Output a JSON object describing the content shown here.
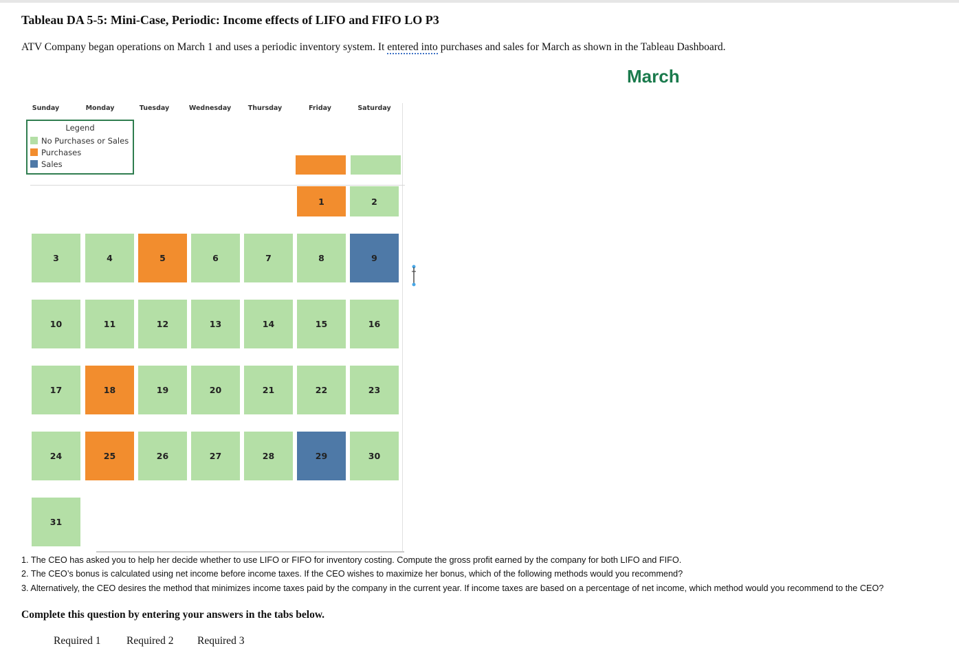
{
  "title": "Tableau DA 5-5: Mini-Case, Periodic: Income effects of LIFO and FIFO LO P3",
  "intro": {
    "before": "ATV Company began operations on March 1 and uses a periodic inventory system. It ",
    "link": "entered into",
    "after": " purchases and sales for March as shown in the Tableau Dashboard."
  },
  "dashboard": {
    "month": "March",
    "weekdays": [
      "Sunday",
      "Monday",
      "Tuesday",
      "Wednesday",
      "Thursday",
      "Friday",
      "Saturday"
    ],
    "legend": {
      "title": "Legend",
      "items": [
        {
          "label": "No Purchases or Sales",
          "color": "#b4dfa6"
        },
        {
          "label": "Purchases",
          "color": "#f28d2e"
        },
        {
          "label": "Sales",
          "color": "#4e79a7"
        }
      ]
    },
    "colors": {
      "none": "#b4dfa6",
      "purchase": "#f28d2e",
      "sale": "#4e79a7"
    },
    "filters": [
      {
        "col": 5,
        "type": "purchase"
      },
      {
        "col": 6,
        "type": "none"
      }
    ],
    "days": [
      {
        "day": "1",
        "type": "purchase",
        "col": 5,
        "row": 0
      },
      {
        "day": "2",
        "type": "none",
        "col": 6,
        "row": 0
      },
      {
        "day": "3",
        "type": "none",
        "col": 0,
        "row": 1
      },
      {
        "day": "4",
        "type": "none",
        "col": 1,
        "row": 1
      },
      {
        "day": "5",
        "type": "purchase",
        "col": 2,
        "row": 1
      },
      {
        "day": "6",
        "type": "none",
        "col": 3,
        "row": 1
      },
      {
        "day": "7",
        "type": "none",
        "col": 4,
        "row": 1
      },
      {
        "day": "8",
        "type": "none",
        "col": 5,
        "row": 1
      },
      {
        "day": "9",
        "type": "sale",
        "col": 6,
        "row": 1
      },
      {
        "day": "10",
        "type": "none",
        "col": 0,
        "row": 2
      },
      {
        "day": "11",
        "type": "none",
        "col": 1,
        "row": 2
      },
      {
        "day": "12",
        "type": "none",
        "col": 2,
        "row": 2
      },
      {
        "day": "13",
        "type": "none",
        "col": 3,
        "row": 2
      },
      {
        "day": "14",
        "type": "none",
        "col": 4,
        "row": 2
      },
      {
        "day": "15",
        "type": "none",
        "col": 5,
        "row": 2
      },
      {
        "day": "16",
        "type": "none",
        "col": 6,
        "row": 2
      },
      {
        "day": "17",
        "type": "none",
        "col": 0,
        "row": 3
      },
      {
        "day": "18",
        "type": "purchase",
        "col": 1,
        "row": 3
      },
      {
        "day": "19",
        "type": "none",
        "col": 2,
        "row": 3
      },
      {
        "day": "20",
        "type": "none",
        "col": 3,
        "row": 3
      },
      {
        "day": "21",
        "type": "none",
        "col": 4,
        "row": 3
      },
      {
        "day": "22",
        "type": "none",
        "col": 5,
        "row": 3
      },
      {
        "day": "23",
        "type": "none",
        "col": 6,
        "row": 3
      },
      {
        "day": "24",
        "type": "none",
        "col": 0,
        "row": 4
      },
      {
        "day": "25",
        "type": "purchase",
        "col": 1,
        "row": 4
      },
      {
        "day": "26",
        "type": "none",
        "col": 2,
        "row": 4
      },
      {
        "day": "27",
        "type": "none",
        "col": 3,
        "row": 4
      },
      {
        "day": "28",
        "type": "none",
        "col": 4,
        "row": 4
      },
      {
        "day": "29",
        "type": "sale",
        "col": 5,
        "row": 4
      },
      {
        "day": "30",
        "type": "none",
        "col": 6,
        "row": 4
      },
      {
        "day": "31",
        "type": "none",
        "col": 0,
        "row": 5
      }
    ]
  },
  "questions": [
    "1. The CEO has asked you to help her decide whether to use LIFO or FIFO for inventory costing. Compute the gross profit earned by the company for both LIFO and FIFO.",
    "2. The CEO’s bonus is calculated using net income before income taxes. If the CEO wishes to maximize her bonus, which of the following methods would you recommend?",
    "3. Alternatively, the CEO desires the method that minimizes income taxes paid by the company in the current year. If income taxes are based on a percentage of net income, which method would you recommend to the CEO?"
  ],
  "complete_label": "Complete this question by entering your answers in the tabs below.",
  "tabs": [
    "Required 1",
    "Required 2",
    "Required 3"
  ]
}
